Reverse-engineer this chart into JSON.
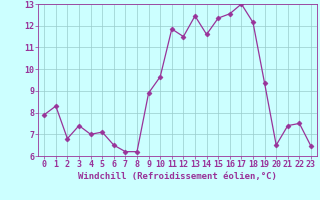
{
  "x": [
    0,
    1,
    2,
    3,
    4,
    5,
    6,
    7,
    8,
    9,
    10,
    11,
    12,
    13,
    14,
    15,
    16,
    17,
    18,
    19,
    20,
    21,
    22,
    23
  ],
  "y": [
    7.9,
    8.3,
    6.8,
    7.4,
    7.0,
    7.1,
    6.5,
    6.2,
    6.2,
    8.9,
    9.65,
    11.85,
    11.5,
    12.45,
    11.6,
    12.35,
    12.55,
    13.0,
    12.15,
    9.35,
    6.5,
    7.4,
    7.5,
    6.45
  ],
  "line_color": "#993399",
  "marker": "D",
  "markersize": 2.5,
  "linewidth": 0.9,
  "background_color": "#ccffff",
  "grid_color": "#99cccc",
  "xlabel": "Windchill (Refroidissement éolien,°C)",
  "xlabel_fontsize": 6.5,
  "tick_fontsize": 6,
  "ylim": [
    6,
    13
  ],
  "yticks": [
    6,
    7,
    8,
    9,
    10,
    11,
    12,
    13
  ],
  "xlim": [
    -0.5,
    23.5
  ],
  "xticks": [
    0,
    1,
    2,
    3,
    4,
    5,
    6,
    7,
    8,
    9,
    10,
    11,
    12,
    13,
    14,
    15,
    16,
    17,
    18,
    19,
    20,
    21,
    22,
    23
  ]
}
